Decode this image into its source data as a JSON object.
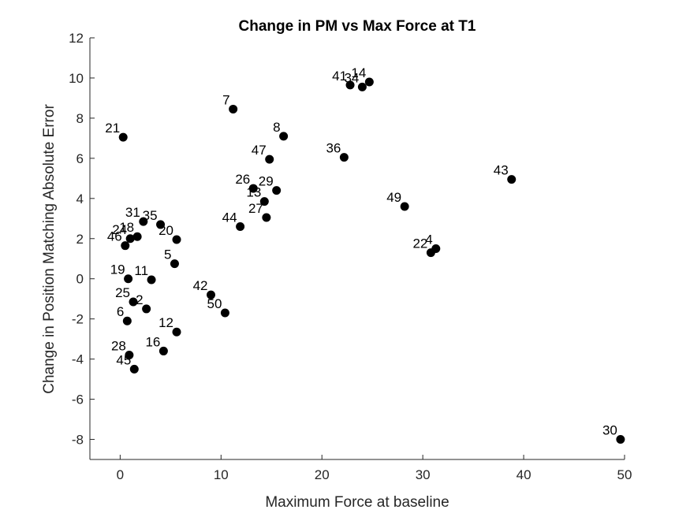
{
  "chart_data": {
    "type": "scatter",
    "title": "Change in PM vs Max Force at T1",
    "xlabel": "Maximum Force at baseline",
    "ylabel": "Change in Position Matching Absolute Error",
    "xlim": [
      -3,
      50
    ],
    "ylim": [
      -9,
      12
    ],
    "xticks": [
      "0",
      "10",
      "20",
      "30",
      "40",
      "50"
    ],
    "yticks": [
      "-8",
      "-6",
      "-4",
      "-2",
      "0",
      "2",
      "4",
      "6",
      "8",
      "10",
      "12"
    ],
    "grid": false,
    "marker_color": "#000000",
    "points": [
      {
        "label": "21",
        "x": 0.3,
        "y": 7.05
      },
      {
        "label": "7",
        "x": 11.2,
        "y": 8.45
      },
      {
        "label": "8",
        "x": 16.2,
        "y": 7.1
      },
      {
        "label": "47",
        "x": 14.8,
        "y": 5.95
      },
      {
        "label": "36",
        "x": 22.2,
        "y": 6.05
      },
      {
        "label": "41",
        "x": 22.8,
        "y": 9.65
      },
      {
        "label": "34",
        "x": 24.0,
        "y": 9.55
      },
      {
        "label": "14",
        "x": 24.7,
        "y": 9.8
      },
      {
        "label": "43",
        "x": 38.8,
        "y": 4.95
      },
      {
        "label": "49",
        "x": 28.2,
        "y": 3.6
      },
      {
        "label": "26",
        "x": 13.2,
        "y": 4.5
      },
      {
        "label": "29",
        "x": 15.5,
        "y": 4.4
      },
      {
        "label": "13",
        "x": 14.3,
        "y": 3.85
      },
      {
        "label": "27",
        "x": 14.5,
        "y": 3.05
      },
      {
        "label": "44",
        "x": 11.9,
        "y": 2.6
      },
      {
        "label": "22",
        "x": 30.8,
        "y": 1.3
      },
      {
        "label": "4",
        "x": 31.3,
        "y": 1.5
      },
      {
        "label": "31",
        "x": 2.3,
        "y": 2.85
      },
      {
        "label": "35",
        "x": 4.0,
        "y": 2.7
      },
      {
        "label": "24",
        "x": 1.0,
        "y": 2.0
      },
      {
        "label": "18",
        "x": 1.7,
        "y": 2.1
      },
      {
        "label": "46",
        "x": 0.5,
        "y": 1.65
      },
      {
        "label": "20",
        "x": 5.6,
        "y": 1.95
      },
      {
        "label": "5",
        "x": 5.4,
        "y": 0.75
      },
      {
        "label": "19",
        "x": 0.8,
        "y": 0.0
      },
      {
        "label": "11",
        "x": 3.1,
        "y": -0.05
      },
      {
        "label": "42",
        "x": 9.0,
        "y": -0.8
      },
      {
        "label": "50",
        "x": 10.4,
        "y": -1.7
      },
      {
        "label": "25",
        "x": 1.3,
        "y": -1.15
      },
      {
        "label": "2",
        "x": 2.6,
        "y": -1.5
      },
      {
        "label": "6",
        "x": 0.7,
        "y": -2.1
      },
      {
        "label": "12",
        "x": 5.6,
        "y": -2.65
      },
      {
        "label": "28",
        "x": 0.9,
        "y": -3.8
      },
      {
        "label": "16",
        "x": 4.3,
        "y": -3.6
      },
      {
        "label": "45",
        "x": 1.4,
        "y": -4.5
      },
      {
        "label": "30",
        "x": 49.6,
        "y": -8.0
      }
    ]
  }
}
